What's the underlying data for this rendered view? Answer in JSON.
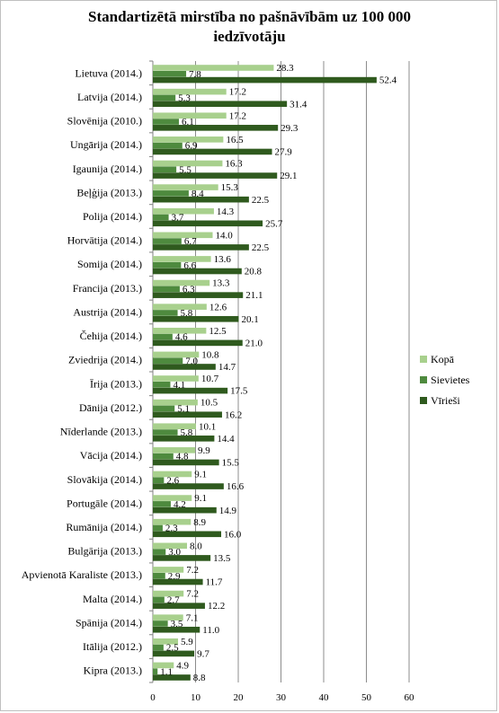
{
  "chart_data": {
    "type": "bar",
    "orientation": "horizontal",
    "title_lines": [
      "Standartizētā mirstība  no pašnāvībām uz 100 000",
      "iedzīvotāju"
    ],
    "categories": [
      "Lietuva (2014.)",
      "Latvija (2014.)",
      "Slovēnija (2010.)",
      "Ungārija (2014.)",
      "Igaunija (2014.)",
      "Beļģija (2013.)",
      "Polija (2014.)",
      "Horvātija (2014.)",
      "Somija (2014.)",
      "Francija (2013.)",
      "Austrija (2014.)",
      "Čehija (2014.)",
      "Zviedrija (2014.)",
      "Īrija (2013.)",
      "Dānija (2012.)",
      "Nīderlande (2013.)",
      "Vācija (2014.)",
      "Slovākija (2014.)",
      "Portugāle (2014.)",
      "Rumānija (2014.)",
      "Bulgārija (2013.)",
      "Apvienotā Karaliste (2013.)",
      "Malta (2014.)",
      "Spānija (2014.)",
      "Itālija (2012.)",
      "Kipra (2013.)"
    ],
    "series": [
      {
        "name": "Kopā",
        "color": "#a8d08d",
        "values": [
          28.3,
          17.2,
          17.2,
          16.5,
          16.3,
          15.3,
          14.3,
          14.0,
          13.6,
          13.3,
          12.6,
          12.5,
          10.8,
          10.7,
          10.5,
          10.1,
          9.9,
          9.1,
          9.1,
          8.9,
          8.0,
          7.2,
          7.2,
          7.1,
          5.9,
          4.9
        ]
      },
      {
        "name": "Sievietes",
        "color": "#4e8a3e",
        "values": [
          7.8,
          5.3,
          6.1,
          6.9,
          5.5,
          8.4,
          3.7,
          6.7,
          6.6,
          6.3,
          5.8,
          4.6,
          7.0,
          4.1,
          5.1,
          5.8,
          4.8,
          2.6,
          4.2,
          2.3,
          3.0,
          2.9,
          2.7,
          3.5,
          2.5,
          1.1
        ]
      },
      {
        "name": "Vīrieši",
        "color": "#2f5a1e",
        "values": [
          52.4,
          31.4,
          29.3,
          27.9,
          29.1,
          22.5,
          25.7,
          22.5,
          20.8,
          21.1,
          20.1,
          21.0,
          14.7,
          17.5,
          16.2,
          14.4,
          15.5,
          16.6,
          14.9,
          16.0,
          13.5,
          11.7,
          12.2,
          11.0,
          9.7,
          8.8
        ]
      }
    ],
    "value_labels": {
      "Kopā": [
        "28.3",
        "17.2",
        "17.2",
        "16.5",
        "16.3",
        "15.3",
        "14.3",
        "14.0",
        "13.6",
        "13.3",
        "12.6",
        "12.5",
        "10.8",
        "10.7",
        "10.5",
        "10.1",
        "9.9",
        "9.1",
        "9.1",
        "8.9",
        "8.0",
        "7.2",
        "7.2",
        "7.1",
        "5.9",
        "4.9"
      ],
      "Sievietes": [
        "7.8",
        "5.3",
        "6.1",
        "6.9",
        "5.5",
        "8.4",
        "3.7",
        "6.7",
        "6.6",
        "6.3",
        "5.8",
        "4.6",
        "7.0",
        "4.1",
        "5.1",
        "5.8",
        "4.8",
        "2.6",
        "4.2",
        "2.3",
        "3.0",
        "2.9",
        "2.7",
        "3.5",
        "2.5",
        "1.1"
      ],
      "Vīrieši": [
        "52.4",
        "31.4",
        "29.3",
        "27.9",
        "29.1",
        "22.5",
        "25.7",
        "22.5",
        "20.8",
        "21.1",
        "20.1",
        "21.0",
        "14.7",
        "17.5",
        "16.2",
        "14.4",
        "15.5",
        "16.6",
        "14.9",
        "16.0",
        "13.5",
        "11.7",
        "12.2",
        "11.0",
        "9.7",
        "8.8"
      ]
    },
    "xlim": [
      0,
      60
    ],
    "xticks": [
      "0",
      "10",
      "20",
      "30",
      "40",
      "50",
      "60"
    ],
    "grid": "vertical",
    "legend_position": "right"
  }
}
